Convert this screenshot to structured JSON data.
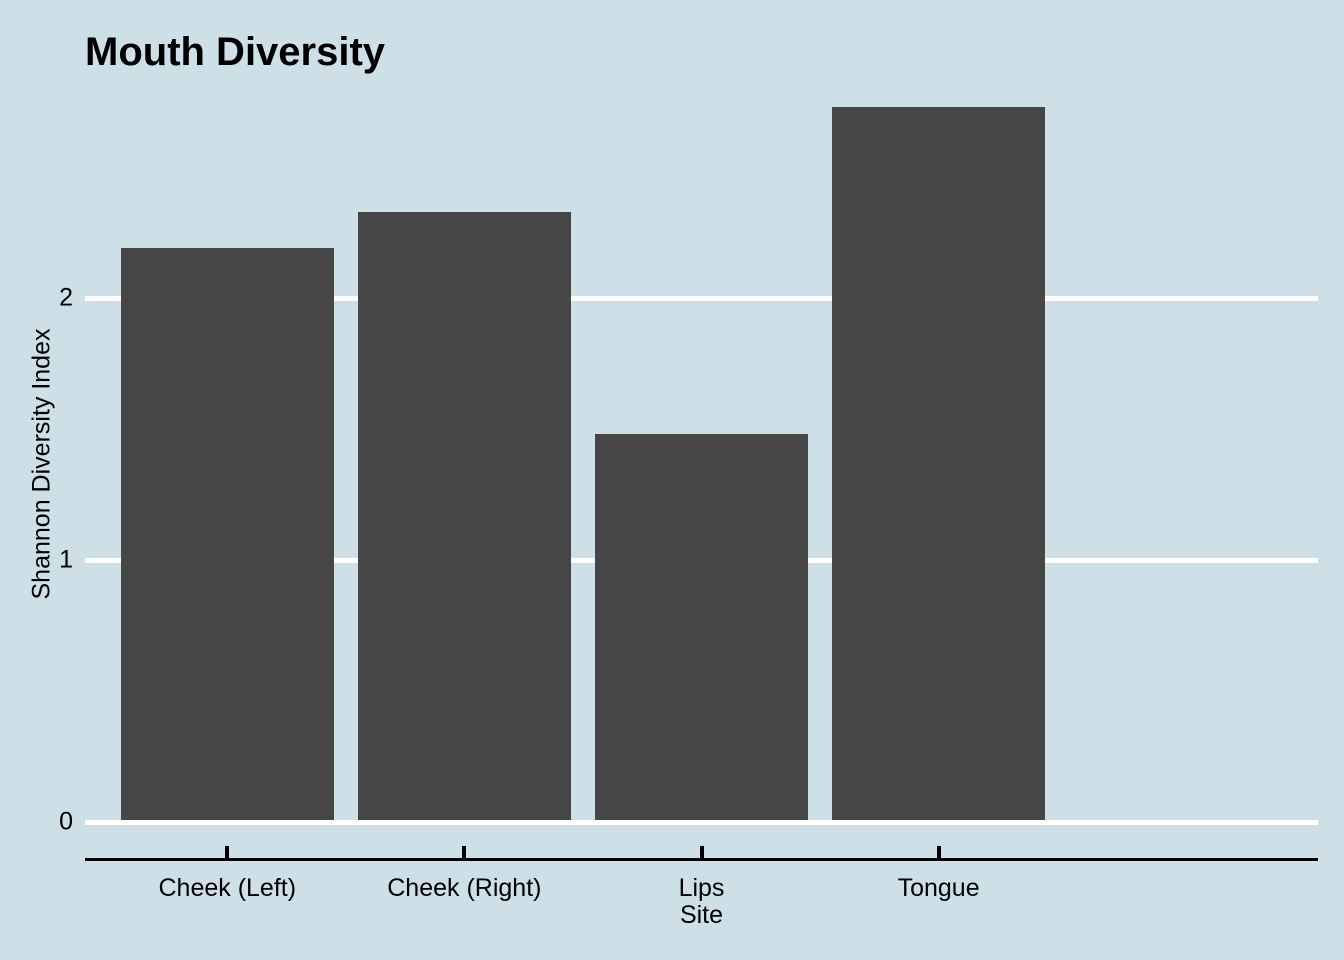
{
  "title": "Mouth Diversity",
  "colors": {
    "background": "#cde0e7",
    "bar": "#464646",
    "gridline": "#ffffff",
    "axis": "#000000",
    "text": "#000000"
  },
  "chart_data": {
    "type": "bar",
    "title": "Mouth Diversity",
    "xlabel": "Site",
    "ylabel": "Shannon Diversity Index",
    "categories": [
      "Cheek (Left)",
      "Cheek (Right)",
      "Lips",
      "Tongue"
    ],
    "values": [
      2.19,
      2.33,
      1.48,
      2.73
    ],
    "yticks": [
      0,
      1,
      2
    ],
    "ytick_labels": [
      "0",
      "1",
      "2"
    ],
    "ylim": [
      0,
      2.87
    ],
    "grid": "horizontal-white-lines",
    "legend": "none",
    "bar_relative_width": 0.9
  }
}
